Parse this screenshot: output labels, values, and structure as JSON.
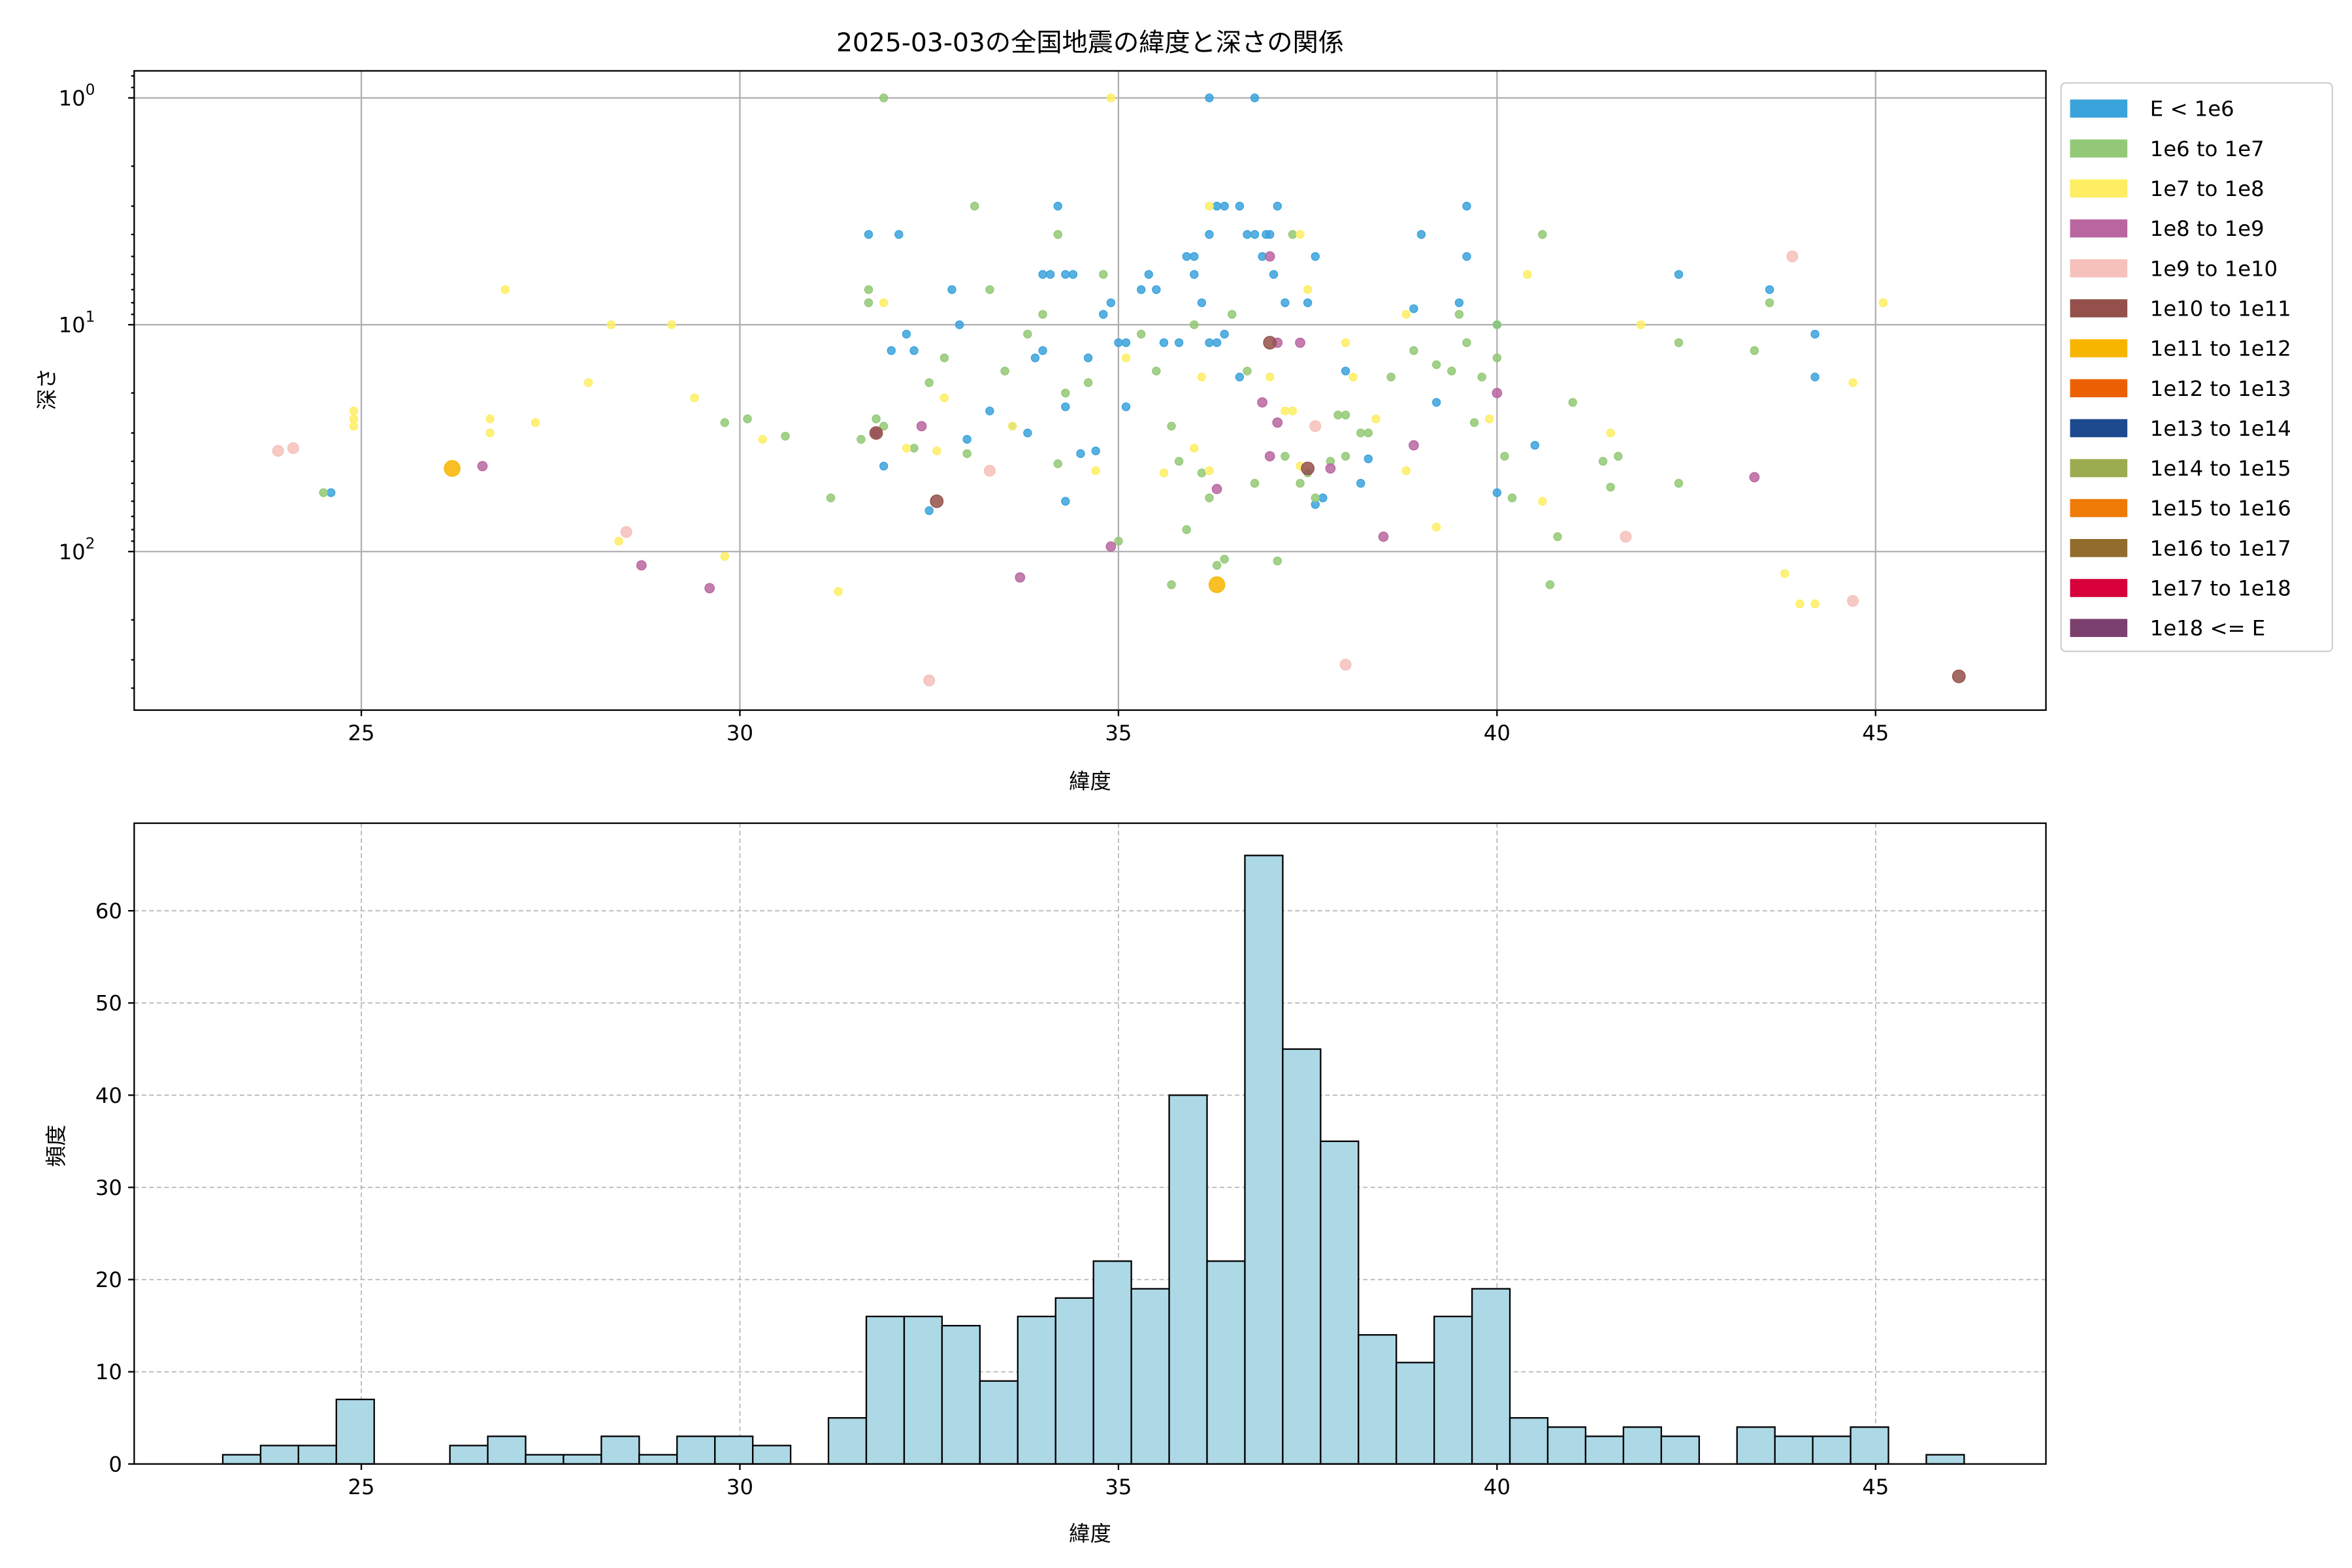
{
  "chart_data": [
    {
      "type": "scatter",
      "title": "2025-03-03の全国地震の緯度と深さの関係",
      "xlabel": "緯度",
      "ylabel": "深さ",
      "xlim": [
        22.0,
        47.25
      ],
      "ylim": [
        0.76,
        500
      ],
      "yscale": "log",
      "y_inverted": true,
      "grid": true,
      "x_ticks": [
        25,
        30,
        35,
        40,
        45
      ],
      "y_ticks": [
        {
          "value": 1,
          "base": "10",
          "exp": "0"
        },
        {
          "value": 10,
          "base": "10",
          "exp": "1"
        },
        {
          "value": 100,
          "base": "10",
          "exp": "2"
        }
      ],
      "legend_position": "outside-right",
      "legend": [
        {
          "label": "E < 1e6",
          "color": "#3ba3dc"
        },
        {
          "label": "1e6 to 1e7",
          "color": "#93c976"
        },
        {
          "label": "1e7 to 1e8",
          "color": "#fdee64"
        },
        {
          "label": "1e8 to 1e9",
          "color": "#b966a0"
        },
        {
          "label": "1e9 to 1e10",
          "color": "#f6c0bb"
        },
        {
          "label": "1e10 to 1e11",
          "color": "#94514b"
        },
        {
          "label": "1e11 to 1e12",
          "color": "#f8b500"
        },
        {
          "label": "1e12 to 1e13",
          "color": "#ec6003"
        },
        {
          "label": "1e13 to 1e14",
          "color": "#1d4a8f"
        },
        {
          "label": "1e14 to 1e15",
          "color": "#9bab4f"
        },
        {
          "label": "1e15 to 1e16",
          "color": "#ef7a06"
        },
        {
          "label": "1e16 to 1e17",
          "color": "#926c2c"
        },
        {
          "label": "1e17 to 1e18",
          "color": "#d8003a"
        },
        {
          "label": "1e18 <= E",
          "color": "#7c406f"
        }
      ],
      "points": [
        [
          24.6,
          55,
          0
        ],
        [
          32.5,
          66,
          0
        ],
        [
          34.3,
          60,
          0
        ],
        [
          33.0,
          32,
          0
        ],
        [
          32.0,
          13,
          0
        ],
        [
          31.7,
          4.0,
          0
        ],
        [
          32.2,
          11,
          0
        ],
        [
          32.3,
          13,
          0
        ],
        [
          32.8,
          7,
          0
        ],
        [
          32.9,
          10,
          0
        ],
        [
          33.6,
          28,
          0
        ],
        [
          33.8,
          30,
          0
        ],
        [
          33.9,
          14,
          0
        ],
        [
          34.0,
          6,
          0
        ],
        [
          34.1,
          6,
          0
        ],
        [
          34.2,
          3.0,
          0
        ],
        [
          34.3,
          6,
          0
        ],
        [
          34.4,
          6,
          0
        ],
        [
          34.3,
          23,
          0
        ],
        [
          34.5,
          37,
          0
        ],
        [
          34.6,
          14,
          0
        ],
        [
          34.7,
          36,
          0
        ],
        [
          34.8,
          9,
          0
        ],
        [
          34.9,
          8,
          0
        ],
        [
          35.0,
          12,
          0
        ],
        [
          35.1,
          12,
          0
        ],
        [
          35.3,
          7,
          0
        ],
        [
          35.5,
          7,
          0
        ],
        [
          35.6,
          12,
          0
        ],
        [
          35.8,
          12,
          0
        ],
        [
          35.9,
          5,
          0
        ],
        [
          36.0,
          5,
          0
        ],
        [
          36.0,
          6,
          0
        ],
        [
          36.1,
          8,
          0
        ],
        [
          36.2,
          4,
          0
        ],
        [
          36.3,
          3.0,
          0
        ],
        [
          36.4,
          3.0,
          0
        ],
        [
          36.6,
          3.0,
          0
        ],
        [
          36.7,
          4,
          0
        ],
        [
          36.8,
          4,
          0
        ],
        [
          36.9,
          5,
          0
        ],
        [
          36.95,
          4,
          0
        ],
        [
          37.0,
          4,
          0
        ],
        [
          37.05,
          6,
          0
        ],
        [
          37.1,
          3.0,
          0
        ],
        [
          36.2,
          12,
          0
        ],
        [
          36.4,
          11,
          0
        ],
        [
          36.6,
          17,
          0
        ],
        [
          37.2,
          8,
          0
        ],
        [
          37.5,
          8,
          0
        ],
        [
          37.7,
          58,
          0
        ],
        [
          37.6,
          62,
          0
        ],
        [
          38.0,
          16,
          0
        ],
        [
          38.2,
          50,
          0
        ],
        [
          38.3,
          39,
          0
        ],
        [
          38.9,
          8.5,
          0
        ],
        [
          39.0,
          4,
          0
        ],
        [
          39.2,
          22,
          0
        ],
        [
          39.5,
          8,
          0
        ],
        [
          39.6,
          5,
          0
        ],
        [
          39.6,
          3.0,
          0
        ],
        [
          40.0,
          10,
          0
        ],
        [
          40.0,
          55,
          0
        ],
        [
          40.5,
          34,
          0
        ],
        [
          42.4,
          6,
          0
        ],
        [
          43.6,
          7,
          0
        ],
        [
          44.2,
          11,
          0
        ],
        [
          44.2,
          17,
          0
        ],
        [
          36.2,
          1,
          0
        ],
        [
          36.8,
          1,
          0
        ],
        [
          35.1,
          23,
          0
        ],
        [
          32.1,
          4.0,
          0
        ],
        [
          37.6,
          5,
          0
        ],
        [
          36.3,
          12,
          0
        ],
        [
          35.4,
          6,
          0
        ],
        [
          33.3,
          24,
          0
        ],
        [
          34.0,
          13,
          0
        ],
        [
          31.9,
          42,
          0
        ],
        [
          31.9,
          1,
          1
        ],
        [
          33.1,
          3.0,
          1
        ],
        [
          34.2,
          4,
          1
        ],
        [
          31.7,
          7,
          1
        ],
        [
          31.7,
          8,
          1
        ],
        [
          31.8,
          26,
          1
        ],
        [
          31.9,
          28,
          1
        ],
        [
          32.3,
          35,
          1
        ],
        [
          32.5,
          18,
          1
        ],
        [
          32.7,
          14,
          1
        ],
        [
          33.0,
          37,
          1
        ],
        [
          33.3,
          7,
          1
        ],
        [
          33.5,
          16,
          1
        ],
        [
          33.8,
          11,
          1
        ],
        [
          34.0,
          9,
          1
        ],
        [
          34.2,
          41,
          1
        ],
        [
          34.3,
          20,
          1
        ],
        [
          34.6,
          18,
          1
        ],
        [
          34.8,
          6,
          1
        ],
        [
          35.0,
          90,
          1
        ],
        [
          35.3,
          11,
          1
        ],
        [
          35.5,
          16,
          1
        ],
        [
          35.7,
          28,
          1
        ],
        [
          35.8,
          40,
          1
        ],
        [
          35.9,
          80,
          1
        ],
        [
          36.0,
          10,
          1
        ],
        [
          36.1,
          45,
          1
        ],
        [
          36.2,
          58,
          1
        ],
        [
          36.3,
          115,
          1
        ],
        [
          36.5,
          9,
          1
        ],
        [
          36.7,
          16,
          1
        ],
        [
          36.8,
          50,
          1
        ],
        [
          37.1,
          110,
          1
        ],
        [
          37.2,
          38,
          1
        ],
        [
          37.4,
          50,
          1
        ],
        [
          37.5,
          45,
          1
        ],
        [
          37.6,
          58,
          1
        ],
        [
          37.8,
          40,
          1
        ],
        [
          37.9,
          25,
          1
        ],
        [
          38.0,
          38,
          1
        ],
        [
          38.2,
          30,
          1
        ],
        [
          38.3,
          30,
          1
        ],
        [
          38.6,
          17,
          1
        ],
        [
          38.9,
          13,
          1
        ],
        [
          39.2,
          15,
          1
        ],
        [
          39.4,
          16,
          1
        ],
        [
          39.5,
          9,
          1
        ],
        [
          39.6,
          12,
          1
        ],
        [
          39.8,
          17,
          1
        ],
        [
          39.7,
          27,
          1
        ],
        [
          40.0,
          10,
          1
        ],
        [
          40.0,
          14,
          1
        ],
        [
          40.1,
          38,
          1
        ],
        [
          40.2,
          58,
          1
        ],
        [
          40.6,
          4,
          1
        ],
        [
          40.7,
          140,
          1
        ],
        [
          40.8,
          86,
          1
        ],
        [
          41.0,
          22,
          1
        ],
        [
          41.4,
          40,
          1
        ],
        [
          41.6,
          38,
          1
        ],
        [
          41.5,
          52,
          1
        ],
        [
          42.4,
          12,
          1
        ],
        [
          42.4,
          50,
          1
        ],
        [
          43.4,
          13,
          1
        ],
        [
          43.6,
          8,
          1
        ],
        [
          29.8,
          27,
          1
        ],
        [
          30.1,
          26,
          1
        ],
        [
          30.6,
          31,
          1
        ],
        [
          31.2,
          58,
          1
        ],
        [
          31.6,
          32,
          1
        ],
        [
          24.5,
          55,
          1
        ],
        [
          36.4,
          108,
          1
        ],
        [
          35.7,
          140,
          1
        ],
        [
          38.0,
          25,
          1
        ],
        [
          37.3,
          4,
          1
        ],
        [
          34.9,
          1,
          2
        ],
        [
          36.2,
          3.0,
          2
        ],
        [
          37.5,
          7,
          2
        ],
        [
          37.4,
          4,
          2
        ],
        [
          40.4,
          6,
          2
        ],
        [
          45.1,
          8,
          2
        ],
        [
          41.9,
          10,
          2
        ],
        [
          38.8,
          9,
          2
        ],
        [
          38.1,
          17,
          2
        ],
        [
          37.3,
          24,
          2
        ],
        [
          36.1,
          17,
          2
        ],
        [
          35.1,
          14,
          2
        ],
        [
          34.7,
          44,
          2
        ],
        [
          32.6,
          36,
          2
        ],
        [
          32.7,
          21,
          2
        ],
        [
          32.2,
          35,
          2
        ],
        [
          31.3,
          150,
          2
        ],
        [
          29.8,
          105,
          2
        ],
        [
          29.4,
          21,
          2
        ],
        [
          28.4,
          90,
          2
        ],
        [
          28.0,
          18,
          2
        ],
        [
          28.3,
          10,
          2
        ],
        [
          29.1,
          10,
          2
        ],
        [
          26.9,
          7,
          2
        ],
        [
          24.9,
          24,
          2
        ],
        [
          24.9,
          26,
          2
        ],
        [
          24.9,
          28,
          2
        ],
        [
          26.7,
          26,
          2
        ],
        [
          26.7,
          30,
          2
        ],
        [
          27.3,
          27,
          2
        ],
        [
          30.3,
          32,
          2
        ],
        [
          36.2,
          44,
          2
        ],
        [
          37.4,
          42,
          2
        ],
        [
          37.2,
          24,
          2
        ],
        [
          38.4,
          26,
          2
        ],
        [
          39.2,
          78,
          2
        ],
        [
          39.9,
          26,
          2
        ],
        [
          40.6,
          60,
          2
        ],
        [
          41.5,
          30,
          2
        ],
        [
          43.8,
          125,
          2
        ],
        [
          44.0,
          170,
          2
        ],
        [
          44.2,
          170,
          2
        ],
        [
          44.7,
          18,
          2
        ],
        [
          36.0,
          35,
          2
        ],
        [
          37.0,
          17,
          2
        ],
        [
          35.6,
          45,
          2
        ],
        [
          38.0,
          12,
          2
        ],
        [
          38.8,
          44,
          2
        ],
        [
          33.6,
          28,
          2
        ],
        [
          31.9,
          8,
          2
        ],
        [
          26.6,
          42,
          3
        ],
        [
          28.7,
          115,
          3
        ],
        [
          29.6,
          145,
          3
        ],
        [
          31.8,
          30,
          3
        ],
        [
          32.4,
          28,
          3
        ],
        [
          33.7,
          130,
          3
        ],
        [
          34.9,
          95,
          3
        ],
        [
          36.3,
          53,
          3
        ],
        [
          36.9,
          22,
          3
        ],
        [
          37.1,
          12,
          3
        ],
        [
          37.0,
          5,
          3
        ],
        [
          37.4,
          12,
          3
        ],
        [
          37.8,
          43,
          3
        ],
        [
          38.5,
          86,
          3
        ],
        [
          38.9,
          34,
          3
        ],
        [
          40.0,
          20,
          3
        ],
        [
          43.4,
          47,
          3
        ],
        [
          37.0,
          38,
          3
        ],
        [
          37.1,
          27,
          3
        ],
        [
          23.9,
          36,
          4
        ],
        [
          24.1,
          35,
          4
        ],
        [
          28.5,
          82,
          4
        ],
        [
          33.3,
          44,
          4
        ],
        [
          41.7,
          86,
          4
        ],
        [
          43.9,
          5,
          4
        ],
        [
          44.7,
          165,
          4
        ],
        [
          32.5,
          370,
          4
        ],
        [
          38.0,
          315,
          4
        ],
        [
          37.6,
          28,
          4
        ],
        [
          32.6,
          60,
          5
        ],
        [
          31.8,
          30,
          5
        ],
        [
          37.0,
          12,
          5
        ],
        [
          46.1,
          355,
          5
        ],
        [
          37.5,
          43,
          5
        ],
        [
          26.2,
          43,
          6
        ],
        [
          36.3,
          140,
          6
        ]
      ]
    },
    {
      "type": "bar",
      "subtype": "histogram",
      "xlabel": "緯度",
      "ylabel": "頻度",
      "xlim": [
        22.0,
        47.25
      ],
      "ylim": [
        0,
        69.5
      ],
      "grid": true,
      "bar_color": "#add8e6",
      "x_ticks": [
        25,
        30,
        35,
        40,
        45
      ],
      "y_ticks": [
        0,
        10,
        20,
        30,
        40,
        50,
        60
      ],
      "bin_start": 23.17,
      "bin_width": 0.5,
      "counts": [
        1,
        2,
        2,
        7,
        0,
        0,
        2,
        3,
        1,
        1,
        3,
        1,
        3,
        3,
        2,
        0,
        5,
        16,
        16,
        15,
        9,
        16,
        18,
        22,
        19,
        40,
        22,
        66,
        45,
        35,
        14,
        11,
        16,
        19,
        5,
        4,
        3,
        4,
        3,
        0,
        4,
        3,
        3,
        4,
        0,
        1
      ]
    }
  ]
}
